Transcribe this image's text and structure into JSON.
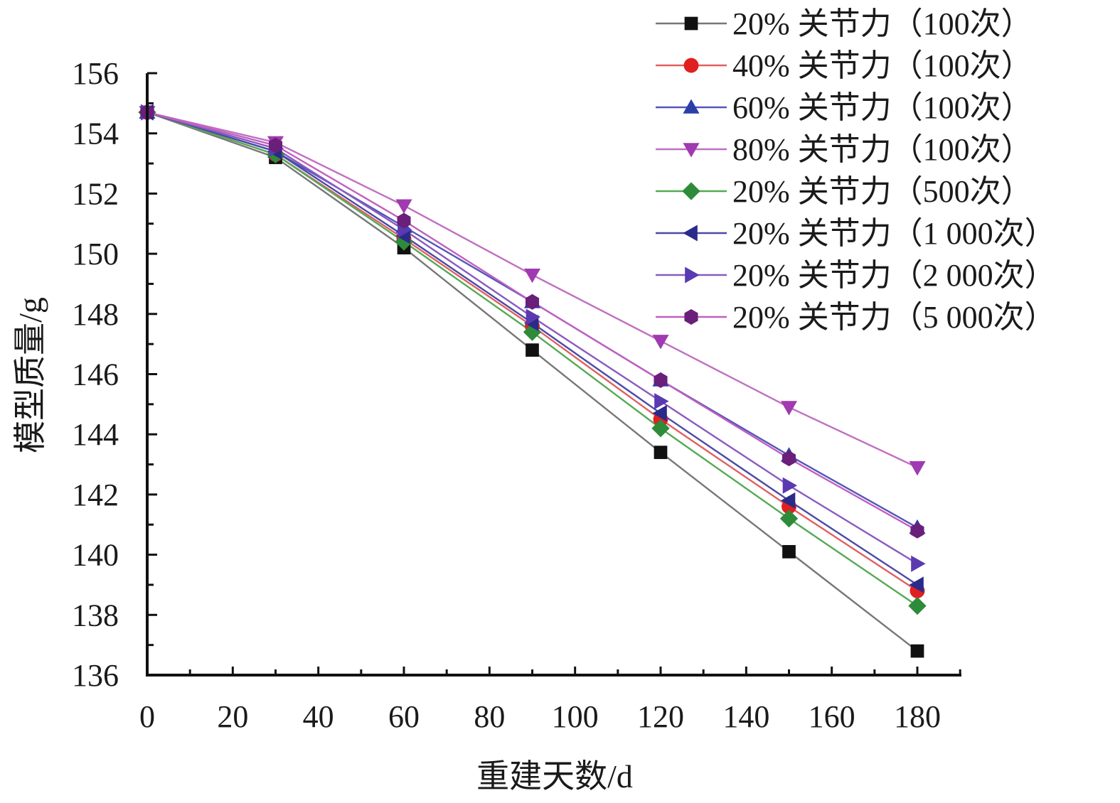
{
  "chart_data": {
    "type": "line",
    "title": "",
    "xlabel": "重建天数/d",
    "ylabel": "模型质量/g",
    "xlim": [
      0,
      190
    ],
    "ylim": [
      136,
      156
    ],
    "x_ticks": [
      0,
      20,
      40,
      60,
      80,
      100,
      120,
      140,
      160,
      180
    ],
    "y_ticks": [
      136,
      138,
      140,
      142,
      144,
      146,
      148,
      150,
      152,
      154,
      156
    ],
    "grid": false,
    "legend_position": "top-right",
    "x": [
      0,
      30,
      60,
      90,
      120,
      150,
      180
    ],
    "series": [
      {
        "name": "20% 关节力（100次）",
        "color": "#777777",
        "marker": "square",
        "marker_color": "#111111",
        "values": [
          154.7,
          153.2,
          150.2,
          146.8,
          143.4,
          140.1,
          136.8
        ]
      },
      {
        "name": "40% 关节力（100次）",
        "color": "#e06060",
        "marker": "circle",
        "marker_color": "#e02020",
        "values": [
          154.7,
          153.3,
          150.5,
          147.6,
          144.5,
          141.6,
          138.8
        ]
      },
      {
        "name": "60% 关节力（100次）",
        "color": "#5555bb",
        "marker": "triangle-up",
        "marker_color": "#2b3fa8",
        "values": [
          154.7,
          153.4,
          150.9,
          148.4,
          145.8,
          143.3,
          140.9
        ]
      },
      {
        "name": "80% 关节力（100次）",
        "color": "#c070c0",
        "marker": "triangle-down",
        "marker_color": "#a03ab0",
        "values": [
          154.7,
          153.7,
          151.6,
          149.3,
          147.1,
          144.9,
          142.9
        ]
      },
      {
        "name": "20% 关节力（500次）",
        "color": "#55aa55",
        "marker": "diamond",
        "marker_color": "#2e8b3a",
        "values": [
          154.7,
          153.3,
          150.4,
          147.4,
          144.2,
          141.2,
          138.3
        ]
      },
      {
        "name": "20% 关节力（1 000次）",
        "color": "#4a4aa8",
        "marker": "triangle-left",
        "marker_color": "#2a2a8a",
        "values": [
          154.7,
          153.4,
          150.6,
          147.7,
          144.7,
          141.8,
          139.0
        ]
      },
      {
        "name": "20% 关节力（2 000次）",
        "color": "#8a5ac0",
        "marker": "triangle-right",
        "marker_color": "#5a3ab0",
        "values": [
          154.7,
          153.5,
          150.8,
          147.9,
          145.1,
          142.3,
          139.7
        ]
      },
      {
        "name": "20% 关节力（5 000次）",
        "color": "#c060c0",
        "marker": "hexagon",
        "marker_color": "#6a1f7a",
        "values": [
          154.7,
          153.6,
          151.1,
          148.4,
          145.8,
          143.2,
          140.8
        ]
      }
    ]
  }
}
